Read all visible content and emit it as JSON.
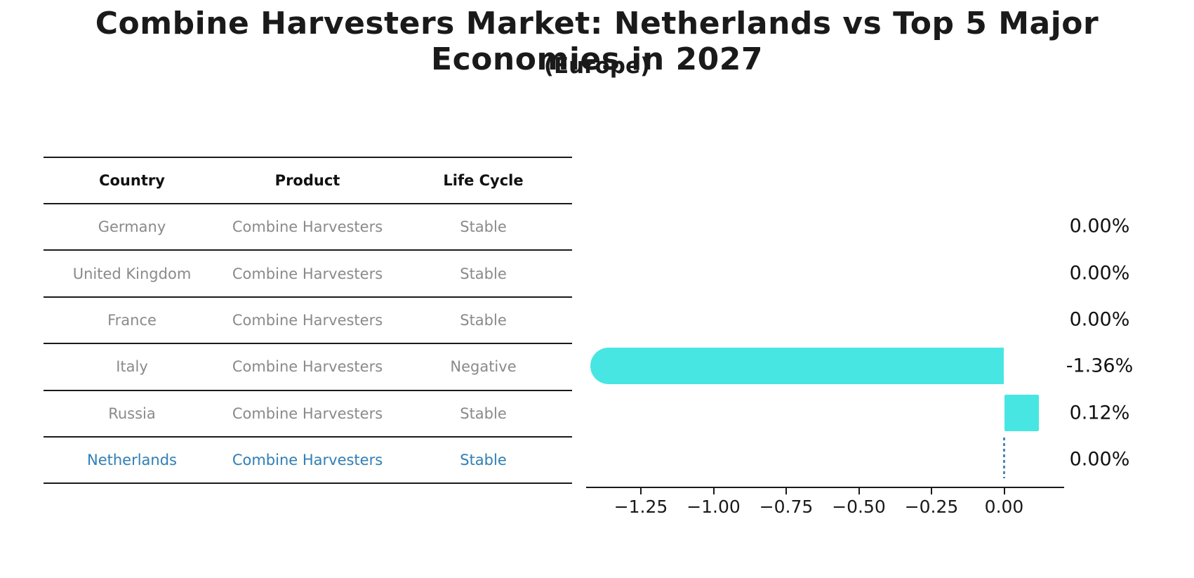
{
  "title": "Combine Harvesters Market: Netherlands vs Top 5 Major Economies in 2027",
  "subtitle": "(Europe)",
  "table": {
    "headers": [
      "Country",
      "Product",
      "Life Cycle"
    ],
    "rows": [
      {
        "country": "Germany",
        "product": "Combine Harvesters",
        "life_cycle": "Stable",
        "highlight": false
      },
      {
        "country": "United Kingdom",
        "product": "Combine Harvesters",
        "life_cycle": "Stable",
        "highlight": false
      },
      {
        "country": "France",
        "product": "Combine Harvesters",
        "life_cycle": "Stable",
        "highlight": false
      },
      {
        "country": "Italy",
        "product": "Combine Harvesters",
        "life_cycle": "Negative",
        "highlight": false
      },
      {
        "country": "Russia",
        "product": "Combine Harvesters",
        "life_cycle": "Stable",
        "highlight": false
      },
      {
        "country": "Netherlands",
        "product": "Combine Harvesters",
        "life_cycle": "Stable",
        "highlight": true
      }
    ]
  },
  "chart_data": {
    "type": "bar",
    "orientation": "horizontal",
    "title": "Combine Harvesters Market: Netherlands vs Top 5 Major Economies in 2027",
    "subtitle": "(Europe)",
    "categories": [
      "Germany",
      "United Kingdom",
      "France",
      "Italy",
      "Russia",
      "Netherlands"
    ],
    "values": [
      0.0,
      0.0,
      0.0,
      -1.36,
      0.12,
      0.0
    ],
    "value_labels": [
      "0.00%",
      "0.00%",
      "0.00%",
      "-1.36%",
      "0.12%",
      "0.00%"
    ],
    "unit": "%",
    "xlim": [
      -1.44,
      0.21
    ],
    "x_tick_values": [
      -1.25,
      -1.0,
      -0.75,
      -0.5,
      -0.25,
      0.0
    ],
    "x_tick_labels": [
      "−1.25",
      "−1.00",
      "−0.75",
      "−0.50",
      "−0.25",
      "0.00"
    ],
    "grid": false,
    "legend": false,
    "bar_color": "#48e6e3",
    "reference_line": {
      "category": "Netherlands",
      "x": 0,
      "style": "dotted",
      "color": "#4a86b8"
    }
  },
  "colors": {
    "bar": "#48e6e3",
    "highlight_text": "#2d7fc4",
    "body_text": "#8a8a8a",
    "heading_text": "#111111",
    "line": "#1a1a1a",
    "reference_line": "#4a86b8",
    "background": "#ffffff"
  }
}
